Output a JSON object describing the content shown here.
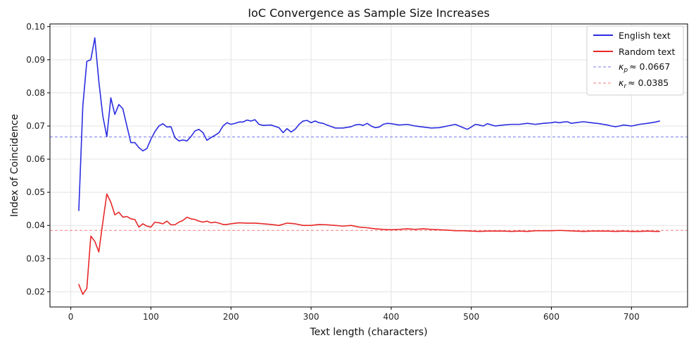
{
  "chart_data": {
    "type": "line",
    "title": "IoC Convergence as Sample Size Increases",
    "xlabel": "Text length (characters)",
    "ylabel": "Index of Coincidence",
    "xlim": [
      -26,
      770
    ],
    "ylim": [
      0.0154,
      0.1008
    ],
    "xticks": [
      0,
      100,
      200,
      300,
      400,
      500,
      600,
      700
    ],
    "yticks": [
      0.02,
      0.03,
      0.04,
      0.05,
      0.06,
      0.07,
      0.08,
      0.09,
      0.1
    ],
    "xtick_labels": [
      "0",
      "100",
      "200",
      "300",
      "400",
      "500",
      "600",
      "700"
    ],
    "ytick_labels": [
      "0.02",
      "0.03",
      "0.04",
      "0.05",
      "0.06",
      "0.07",
      "0.08",
      "0.09",
      "0.10"
    ],
    "grid": true,
    "legend_position": "top-right",
    "series": [
      {
        "name": "English text",
        "color": "#2b2de0",
        "x": [
          10,
          15,
          20,
          25,
          30,
          35,
          40,
          45,
          50,
          55,
          60,
          65,
          70,
          75,
          80,
          85,
          90,
          95,
          100,
          105,
          110,
          115,
          120,
          125,
          130,
          135,
          140,
          145,
          150,
          155,
          160,
          165,
          170,
          175,
          180,
          185,
          190,
          195,
          200,
          205,
          210,
          215,
          220,
          225,
          230,
          235,
          240,
          250,
          260,
          265,
          270,
          275,
          280,
          285,
          290,
          295,
          300,
          305,
          310,
          315,
          320,
          330,
          340,
          350,
          355,
          360,
          365,
          370,
          375,
          380,
          385,
          390,
          395,
          400,
          410,
          420,
          430,
          440,
          450,
          460,
          470,
          480,
          490,
          495,
          500,
          505,
          510,
          515,
          520,
          530,
          540,
          550,
          560,
          570,
          580,
          590,
          600,
          605,
          610,
          615,
          620,
          625,
          630,
          640,
          650,
          660,
          670,
          675,
          680,
          685,
          690,
          700,
          710,
          720,
          730,
          735
        ],
        "values": [
          0.0445,
          0.076,
          0.0895,
          0.09,
          0.0966,
          0.0835,
          0.073,
          0.0668,
          0.0785,
          0.0735,
          0.0765,
          0.0752,
          0.07,
          0.065,
          0.065,
          0.0635,
          0.0625,
          0.0632,
          0.066,
          0.0683,
          0.07,
          0.0707,
          0.0697,
          0.0698,
          0.0665,
          0.0655,
          0.0658,
          0.0655,
          0.0668,
          0.0685,
          0.069,
          0.068,
          0.0657,
          0.0665,
          0.0672,
          0.068,
          0.07,
          0.071,
          0.0705,
          0.0708,
          0.0712,
          0.0712,
          0.0718,
          0.0715,
          0.0719,
          0.0705,
          0.0702,
          0.0703,
          0.0695,
          0.068,
          0.0692,
          0.0682,
          0.069,
          0.0705,
          0.0715,
          0.0717,
          0.071,
          0.0715,
          0.071,
          0.0708,
          0.0703,
          0.0694,
          0.0694,
          0.0698,
          0.0703,
          0.0705,
          0.0702,
          0.0708,
          0.07,
          0.0695,
          0.0697,
          0.0705,
          0.0708,
          0.0707,
          0.0703,
          0.0705,
          0.07,
          0.0697,
          0.0694,
          0.0695,
          0.07,
          0.0705,
          0.0695,
          0.069,
          0.0697,
          0.0705,
          0.0703,
          0.07,
          0.0707,
          0.07,
          0.0703,
          0.0705,
          0.0705,
          0.0708,
          0.0705,
          0.0708,
          0.071,
          0.0712,
          0.071,
          0.0712,
          0.0713,
          0.0708,
          0.071,
          0.0713,
          0.071,
          0.0707,
          0.0703,
          0.07,
          0.0698,
          0.07,
          0.0703,
          0.07,
          0.0705,
          0.0708,
          0.0712,
          0.0715
        ]
      },
      {
        "name": "Random text",
        "color": "#e82828",
        "x": [
          10,
          15,
          20,
          25,
          30,
          35,
          40,
          45,
          50,
          55,
          60,
          65,
          70,
          75,
          80,
          85,
          90,
          95,
          100,
          105,
          110,
          115,
          120,
          125,
          130,
          135,
          140,
          145,
          150,
          155,
          160,
          165,
          170,
          175,
          180,
          185,
          190,
          195,
          200,
          210,
          220,
          230,
          240,
          250,
          260,
          270,
          280,
          290,
          300,
          310,
          320,
          330,
          340,
          350,
          360,
          370,
          380,
          390,
          400,
          410,
          420,
          430,
          440,
          450,
          460,
          470,
          480,
          490,
          500,
          510,
          520,
          530,
          540,
          550,
          560,
          570,
          580,
          590,
          600,
          610,
          620,
          630,
          640,
          650,
          660,
          670,
          680,
          690,
          700,
          710,
          720,
          730,
          735
        ],
        "values": [
          0.0222,
          0.0192,
          0.021,
          0.0368,
          0.0352,
          0.032,
          0.041,
          0.0495,
          0.047,
          0.0432,
          0.044,
          0.0425,
          0.0427,
          0.042,
          0.0418,
          0.0395,
          0.0405,
          0.0398,
          0.0395,
          0.041,
          0.0408,
          0.0405,
          0.0413,
          0.0402,
          0.0402,
          0.041,
          0.0415,
          0.0425,
          0.042,
          0.0418,
          0.0413,
          0.041,
          0.0413,
          0.0408,
          0.041,
          0.0407,
          0.0403,
          0.0403,
          0.0405,
          0.0408,
          0.0407,
          0.0407,
          0.0405,
          0.0403,
          0.04,
          0.0407,
          0.0405,
          0.04,
          0.04,
          0.0403,
          0.0402,
          0.04,
          0.0398,
          0.04,
          0.0395,
          0.0393,
          0.039,
          0.0388,
          0.0387,
          0.0388,
          0.039,
          0.0388,
          0.039,
          0.0388,
          0.0387,
          0.0386,
          0.0384,
          0.0384,
          0.0383,
          0.0382,
          0.0383,
          0.0383,
          0.0383,
          0.0382,
          0.0383,
          0.0382,
          0.0384,
          0.0384,
          0.0384,
          0.0385,
          0.0384,
          0.0383,
          0.0382,
          0.0383,
          0.0383,
          0.0383,
          0.0382,
          0.0383,
          0.0382,
          0.0382,
          0.0383,
          0.0382,
          0.0382
        ]
      }
    ],
    "reference_lines": [
      {
        "name": "κ_p ≈ 0.0667",
        "symbol": "κ",
        "sub": "p",
        "approx_label": "≈ 0.0667",
        "value": 0.0667,
        "color": "#7b7bf2",
        "style": "dashed"
      },
      {
        "name": "κ_r ≈ 0.0385",
        "symbol": "κ",
        "sub": "r",
        "approx_label": "≈ 0.0385",
        "value": 0.0385,
        "color": "#f27b7b",
        "style": "dashed"
      }
    ]
  }
}
